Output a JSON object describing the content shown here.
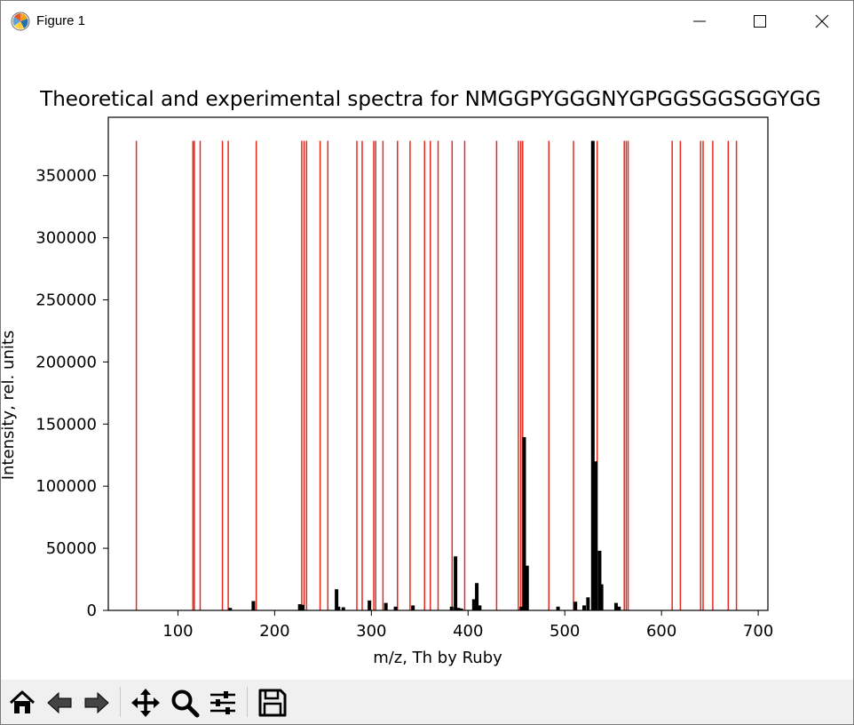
{
  "window": {
    "title": "Figure 1",
    "controls": [
      "minimize-icon",
      "maximize-icon",
      "close-icon"
    ]
  },
  "toolbar": {
    "buttons": [
      "home-icon",
      "back-arrow-icon",
      "forward-arrow-icon",
      "pan-icon",
      "zoom-icon",
      "configure-subplots-icon",
      "save-icon"
    ]
  },
  "chart_data": {
    "type": "bar",
    "title": "Theoretical and experimental spectra for NMGGPYGGGNYGPGGSGGSGGYGG",
    "xlabel": "m/z, Th by Ruby",
    "ylabel": "Intensity, rel. units",
    "xlim": [
      28,
      710
    ],
    "ylim": [
      0,
      397000
    ],
    "xticks": [
      "100",
      "200",
      "300",
      "400",
      "500",
      "600",
      "700"
    ],
    "yticks": [
      "0",
      "50000",
      "100000",
      "150000",
      "200000",
      "250000",
      "300000",
      "350000"
    ],
    "grid": false,
    "series": [
      {
        "color": "#e8281e",
        "height": 378000,
        "x": [
          57.0,
          115.5,
          117.0,
          123.0,
          146.0,
          152.0,
          181.0,
          228.0,
          230.5,
          233.0,
          247.0,
          255.0,
          285.0,
          290.5,
          302.5,
          304.5,
          312.0,
          327.0,
          340.0,
          355.0,
          361.0,
          369.0,
          383.5,
          396.5,
          429.5,
          452.0,
          454.5,
          456.5,
          483.5,
          509.0,
          533.5,
          561.5,
          563.5,
          565.5,
          611.0,
          619.5,
          640.5,
          643.0,
          653.0,
          669.0,
          677.5
        ]
      },
      {
        "color": "#000000",
        "x": [
          154,
          178,
          226,
          229,
          264,
          266,
          271,
          298,
          315,
          325,
          343,
          383,
          387,
          390,
          393,
          406,
          409,
          412,
          455,
          458,
          461,
          493,
          511,
          520,
          524,
          529,
          532,
          536,
          538,
          553,
          556
        ],
        "values": [
          2000,
          7500,
          5000,
          4500,
          17000,
          3000,
          2500,
          8000,
          6000,
          3000,
          4000,
          3000,
          43500,
          2000,
          1500,
          9000,
          22000,
          4000,
          3000,
          139500,
          36000,
          3000,
          7000,
          4000,
          10500,
          378000,
          120000,
          48000,
          21000,
          6000,
          3000
        ]
      }
    ]
  }
}
